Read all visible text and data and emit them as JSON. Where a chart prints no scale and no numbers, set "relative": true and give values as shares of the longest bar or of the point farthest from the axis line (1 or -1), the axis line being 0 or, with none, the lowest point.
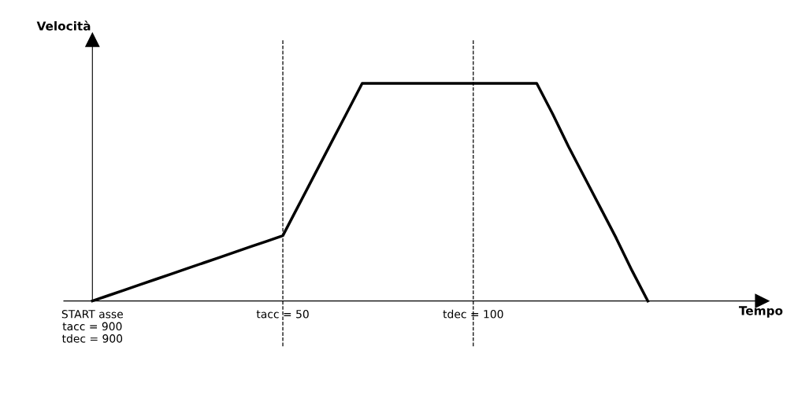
{
  "chart_data": {
    "type": "line",
    "relative": true,
    "annotations": [
      "Tempo"
    ],
    "ylabel": "Velocità",
    "categories": [
      "START asse\ntacc = 900\ntdec = 900",
      null,
      null,
      null,
      null,
      null,
      null,
      null,
      null,
      null,
      null,
      null,
      "tacc = 50",
      null,
      null,
      null,
      null,
      null,
      null,
      null,
      null,
      null,
      null,
      null,
      "tdec = 100",
      null,
      null,
      null,
      null,
      null,
      null,
      null,
      null,
      null,
      null,
      null
    ],
    "series": [
      {
        "color": "#000000",
        "values": [
          0,
          0.025,
          0.05,
          0.075,
          0.1,
          0.125,
          0.15,
          0.175,
          0.2,
          0.225,
          0.25,
          0.275,
          0.3,
          0.44,
          0.58,
          0.72,
          0.86,
          1,
          1,
          1,
          1,
          1,
          1,
          1,
          1,
          1,
          1,
          1,
          1,
          0.86,
          0.71,
          0.57,
          0.43,
          0.29,
          0.14,
          0
        ]
      }
    ],
    "ref_lines": [
      {
        "axis": "x",
        "value": "tacc = 50",
        "color": "#000000",
        "line_style": "dashed"
      },
      {
        "axis": "x",
        "value": "tdec = 100",
        "color": "#000000",
        "line_style": "dashed"
      }
    ],
    "grid": false,
    "legend": false,
    "marker": "none",
    "line_style": "solid"
  }
}
